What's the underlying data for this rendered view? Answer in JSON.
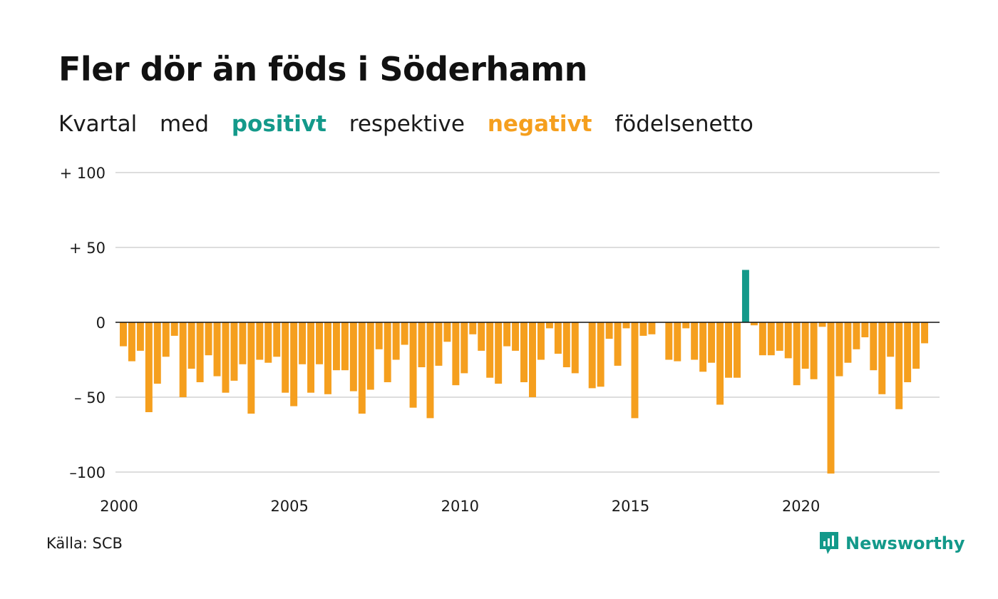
{
  "title": "Fler dör än föds i Söderhamn",
  "subtitle": {
    "part1": "Kvartal",
    "part2": "med",
    "positive": "positivt",
    "part3": "respektive",
    "negative": "negativt",
    "part4": "födelsenetto"
  },
  "source": "Källa: SCB",
  "brand": {
    "name": "Newsworthy",
    "icon": "newsworthy-logo-icon"
  },
  "colors": {
    "positive": "#13998a",
    "negative": "#f59f1e",
    "grid": "#dddddd",
    "zero": "#111111"
  },
  "chart_data": {
    "type": "bar",
    "title": "Fler dör än föds i Söderhamn",
    "xlabel": "",
    "ylabel": "",
    "ylim": [
      -100,
      100
    ],
    "grid": true,
    "y_ticks": [
      {
        "value": 100,
        "label": "+ 100"
      },
      {
        "value": 50,
        "label": "+  50"
      },
      {
        "value": 0,
        "label": "0"
      },
      {
        "value": -50,
        "label": "– 50"
      },
      {
        "value": -100,
        "label": "–100"
      }
    ],
    "x_ticks": [
      {
        "value": 2000,
        "label": "2000"
      },
      {
        "value": 2005,
        "label": "2005"
      },
      {
        "value": 2010,
        "label": "2010"
      },
      {
        "value": 2015,
        "label": "2015"
      },
      {
        "value": 2020,
        "label": "2020"
      }
    ],
    "categories": [
      "2000Q1",
      "2000Q2",
      "2000Q3",
      "2000Q4",
      "2001Q1",
      "2001Q2",
      "2001Q3",
      "2001Q4",
      "2002Q1",
      "2002Q2",
      "2002Q3",
      "2002Q4",
      "2003Q1",
      "2003Q2",
      "2003Q3",
      "2003Q4",
      "2004Q1",
      "2004Q2",
      "2004Q3",
      "2004Q4",
      "2005Q1",
      "2005Q2",
      "2005Q3",
      "2005Q4",
      "2006Q1",
      "2006Q2",
      "2006Q3",
      "2006Q4",
      "2007Q1",
      "2007Q2",
      "2007Q3",
      "2007Q4",
      "2008Q1",
      "2008Q2",
      "2008Q3",
      "2008Q4",
      "2009Q1",
      "2009Q2",
      "2009Q3",
      "2009Q4",
      "2010Q1",
      "2010Q2",
      "2010Q3",
      "2010Q4",
      "2011Q1",
      "2011Q2",
      "2011Q3",
      "2011Q4",
      "2012Q1",
      "2012Q2",
      "2012Q3",
      "2012Q4",
      "2013Q1",
      "2013Q2",
      "2013Q3",
      "2013Q4",
      "2014Q1",
      "2014Q2",
      "2014Q3",
      "2014Q4",
      "2015Q1",
      "2015Q2",
      "2015Q3",
      "2015Q4",
      "2016Q1",
      "2016Q2",
      "2016Q3",
      "2016Q4",
      "2017Q1",
      "2017Q2",
      "2017Q3",
      "2017Q4",
      "2018Q1",
      "2018Q2",
      "2018Q3",
      "2018Q4",
      "2019Q1",
      "2019Q2",
      "2019Q3",
      "2019Q4",
      "2020Q1",
      "2020Q2",
      "2020Q3",
      "2020Q4",
      "2021Q1",
      "2021Q2",
      "2021Q3",
      "2021Q4",
      "2022Q1",
      "2022Q2",
      "2022Q3",
      "2022Q4",
      "2023Q1",
      "2023Q2",
      "2023Q3",
      "2023Q4"
    ],
    "values": [
      -16,
      -26,
      -19,
      -60,
      -41,
      -23,
      -9,
      -50,
      -31,
      -40,
      -22,
      -36,
      -47,
      -39,
      -28,
      -61,
      -25,
      -27,
      -23,
      -47,
      -56,
      -28,
      -47,
      -28,
      -48,
      -32,
      -32,
      -46,
      -61,
      -45,
      -18,
      -40,
      -25,
      -15,
      -57,
      -30,
      -64,
      -29,
      -13,
      -42,
      -34,
      -8,
      -19,
      -37,
      -41,
      -16,
      -19,
      -40,
      -50,
      -25,
      -4,
      -21,
      -30,
      -34,
      0,
      -44,
      -43,
      -11,
      -29,
      -4,
      -64,
      -9,
      -8,
      0,
      -25,
      -26,
      -4,
      -25,
      -33,
      -27,
      -55,
      -37,
      -37,
      35,
      -2,
      -22,
      -22,
      -19,
      -24,
      -42,
      -31,
      -38,
      -3,
      -101,
      -36,
      -27,
      -18,
      -10,
      -32,
      -48,
      -23,
      -58,
      -40,
      -31,
      -14,
      0
    ]
  }
}
